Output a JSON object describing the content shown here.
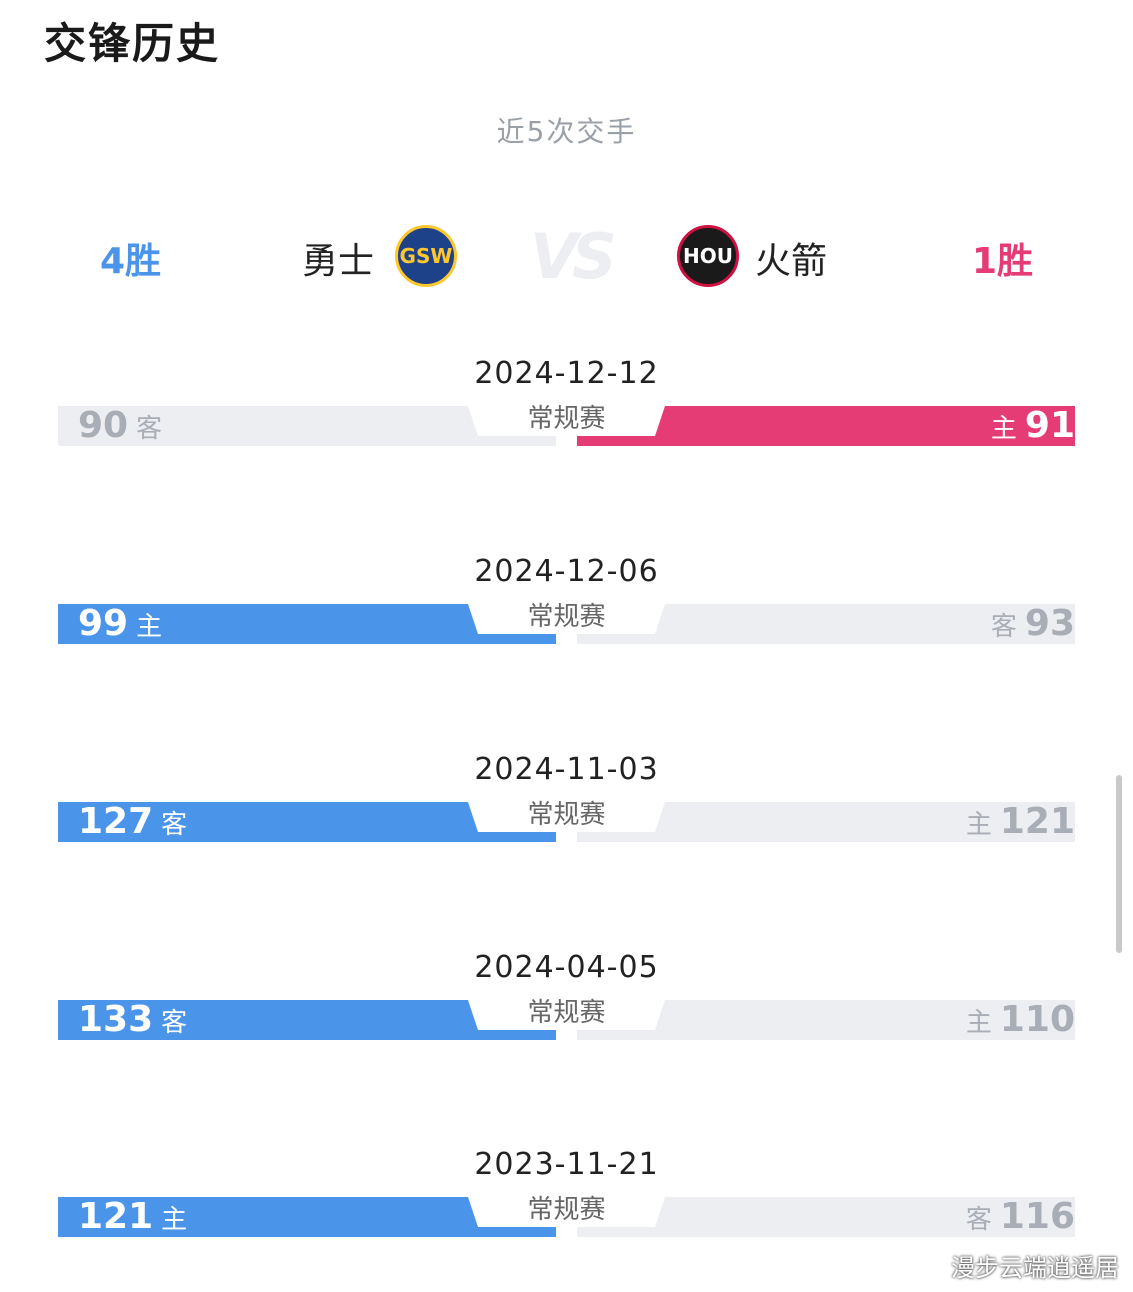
{
  "title": "交锋历史",
  "subtitle": "近5次交手",
  "teams": {
    "left": {
      "name": "勇士",
      "logo_text": "GSW",
      "wins": "4胜",
      "color": "#4a95ea"
    },
    "right": {
      "name": "火箭",
      "logo_text": "HOU",
      "wins": "1胜",
      "color": "#e63c75"
    }
  },
  "vs_text": "VS",
  "games": [
    {
      "date": "2024-12-12",
      "type": "常规赛",
      "left_score": "90",
      "left_ha": "客",
      "right_score": "91",
      "right_ha": "主",
      "winner": "right"
    },
    {
      "date": "2024-12-06",
      "type": "常规赛",
      "left_score": "99",
      "left_ha": "主",
      "right_score": "93",
      "right_ha": "客",
      "winner": "left"
    },
    {
      "date": "2024-11-03",
      "type": "常规赛",
      "left_score": "127",
      "left_ha": "客",
      "right_score": "121",
      "right_ha": "主",
      "winner": "left"
    },
    {
      "date": "2024-04-05",
      "type": "常规赛",
      "left_score": "133",
      "left_ha": "客",
      "right_score": "110",
      "right_ha": "主",
      "winner": "left"
    },
    {
      "date": "2023-11-21",
      "type": "常规赛",
      "left_score": "121",
      "left_ha": "主",
      "right_score": "116",
      "right_ha": "客",
      "winner": "left"
    }
  ],
  "watermark": "漫步云端逍遥居"
}
